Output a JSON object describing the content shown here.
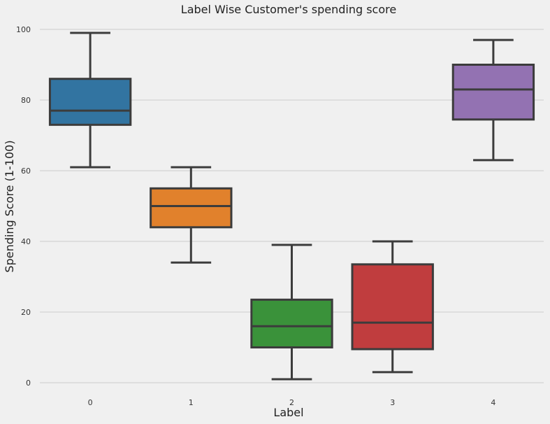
{
  "chart_data": {
    "type": "box",
    "title": "Label Wise Customer's spending score",
    "xlabel": "Label",
    "ylabel": "Spending Score (1-100)",
    "ylim": [
      -2,
      103
    ],
    "yticks": [
      0,
      20,
      40,
      60,
      80,
      100
    ],
    "grid": true,
    "categories": [
      "0",
      "1",
      "2",
      "3",
      "4"
    ],
    "boxes": [
      {
        "category": "0",
        "whisker_low": 61,
        "q1": 73,
        "median": 77,
        "q3": 86,
        "whisker_high": 99,
        "color": "#3274a1"
      },
      {
        "category": "1",
        "whisker_low": 34,
        "q1": 44,
        "median": 50,
        "q3": 55,
        "whisker_high": 61,
        "color": "#e1812c"
      },
      {
        "category": "2",
        "whisker_low": 1,
        "q1": 10,
        "median": 16,
        "q3": 23.5,
        "whisker_high": 39,
        "color": "#3a923a"
      },
      {
        "category": "3",
        "whisker_low": 3,
        "q1": 9.5,
        "median": 17,
        "q3": 33.5,
        "whisker_high": 40,
        "color": "#c03d3e"
      },
      {
        "category": "4",
        "whisker_low": 63,
        "q1": 74.5,
        "median": 83,
        "q3": 90,
        "whisker_high": 97,
        "color": "#9372b2"
      }
    ]
  }
}
